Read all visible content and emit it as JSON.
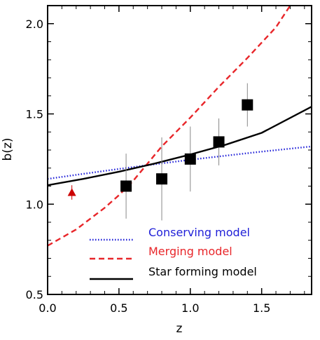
{
  "chart_data": {
    "type": "line",
    "title": "",
    "xlabel": "z",
    "ylabel": "b(z)",
    "xlim": [
      0.0,
      1.85
    ],
    "ylim": [
      0.5,
      2.1
    ],
    "x_ticks": [
      0.0,
      0.5,
      1.0,
      1.5
    ],
    "x_tick_labels": [
      "0.0",
      "0.5",
      "1.0",
      "1.5"
    ],
    "y_ticks": [
      0.5,
      1.0,
      1.5,
      2.0
    ],
    "y_tick_labels": [
      "0.5",
      "1.0",
      "1.5",
      "2.0"
    ],
    "grid": false,
    "legend_position": "bottom-right",
    "series": [
      {
        "name": "Conserving model",
        "color": "#1f1fd8",
        "style": "dotted",
        "x": [
          0.0,
          0.25,
          0.5,
          0.75,
          1.0,
          1.25,
          1.5,
          1.85
        ],
        "y": [
          1.14,
          1.168,
          1.195,
          1.221,
          1.246,
          1.269,
          1.291,
          1.32
        ]
      },
      {
        "name": "Merging model",
        "color": "#e8262a",
        "style": "dashed",
        "x": [
          0.0,
          0.2,
          0.4,
          0.5,
          0.6,
          0.8,
          1.0,
          1.2,
          1.4,
          1.6,
          1.7
        ],
        "y": [
          0.77,
          0.86,
          0.98,
          1.05,
          1.13,
          1.32,
          1.48,
          1.65,
          1.81,
          1.98,
          2.1
        ]
      },
      {
        "name": "Star forming model",
        "color": "#000000",
        "style": "solid",
        "x": [
          0.0,
          0.25,
          0.5,
          0.75,
          1.0,
          1.25,
          1.5,
          1.85
        ],
        "y": [
          1.105,
          1.14,
          1.18,
          1.225,
          1.275,
          1.33,
          1.395,
          1.54
        ]
      }
    ],
    "points": [
      {
        "marker": "square",
        "color": "#000000",
        "x": 0.55,
        "y": 1.1,
        "yerr_low": 0.18,
        "yerr_high": 0.18
      },
      {
        "marker": "square",
        "color": "#000000",
        "x": 0.8,
        "y": 1.14,
        "yerr_low": 0.23,
        "yerr_high": 0.23
      },
      {
        "marker": "square",
        "color": "#000000",
        "x": 1.0,
        "y": 1.25,
        "yerr_low": 0.18,
        "yerr_high": 0.18
      },
      {
        "marker": "square",
        "color": "#000000",
        "x": 1.2,
        "y": 1.345,
        "yerr_low": 0.13,
        "yerr_high": 0.13
      },
      {
        "marker": "square",
        "color": "#000000",
        "x": 1.4,
        "y": 1.55,
        "yerr_low": 0.12,
        "yerr_high": 0.12
      },
      {
        "marker": "triangle",
        "color": "#cc0000",
        "x": 0.17,
        "y": 1.065,
        "yerr_low": 0.04,
        "yerr_high": 0.04
      }
    ]
  }
}
